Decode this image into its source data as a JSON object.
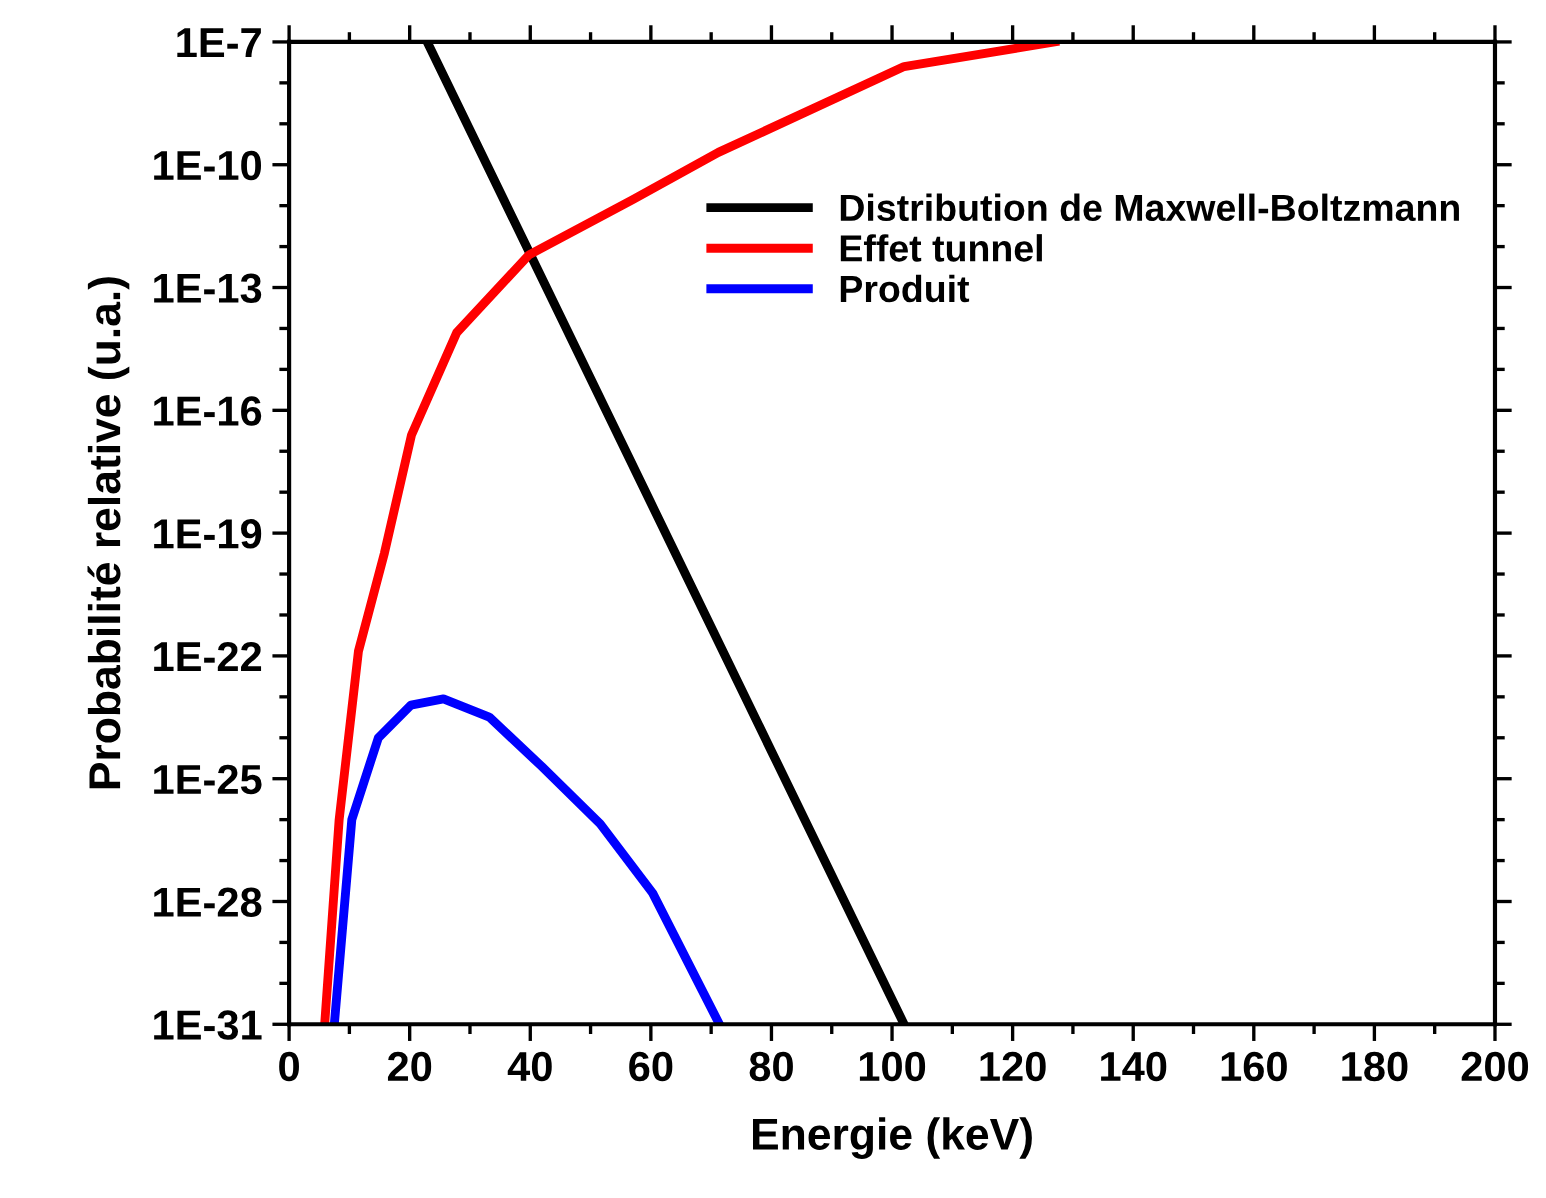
{
  "chart_data": {
    "type": "line",
    "xlabel": "Energie (keV)",
    "ylabel": "Probabilité relative (u.a.)",
    "log": "y",
    "xlim": [
      0,
      200
    ],
    "xticks": [
      0,
      20,
      40,
      60,
      80,
      100,
      120,
      140,
      160,
      180,
      200
    ],
    "ylim": [
      1e-31,
      1e-07
    ],
    "yticks": [
      {
        "value": 1e-31,
        "label": "1E-31"
      },
      {
        "value": 1e-28,
        "label": "1E-28"
      },
      {
        "value": 1e-25,
        "label": "1E-25"
      },
      {
        "value": 1e-22,
        "label": "1E-22"
      },
      {
        "value": 1e-19,
        "label": "1E-19"
      },
      {
        "value": 1e-16,
        "label": "1E-16"
      },
      {
        "value": 1e-13,
        "label": "1E-13"
      },
      {
        "value": 1e-10,
        "label": "1E-10"
      },
      {
        "value": 1e-07,
        "label": "1E-7"
      }
    ],
    "grid": false,
    "legend": "top right",
    "marker": "none",
    "line_style": "solid",
    "series": [
      {
        "name": "Distribution de Maxwell-Boltzmann",
        "color": "#000000",
        "x": [
          22.9,
          40,
          60,
          80,
          102
        ],
        "values": [
          1e-07,
          6.5e-13,
          5.5e-19,
          4.7e-25,
          1e-31
        ]
      },
      {
        "name": "Effet tunnel",
        "color": "#ff0000",
        "x": [
          5.9,
          8.3,
          11.5,
          15.8,
          20.3,
          27.8,
          39.8,
          57,
          71.2,
          102,
          127
        ],
        "values": [
          1e-31,
          1e-26,
          1.3e-22,
          3.2e-20,
          2.5e-17,
          7.9e-15,
          6.3e-13,
          1.4e-11,
          2e-10,
          2.5e-08,
          1e-07
        ]
      },
      {
        "name": "Produit",
        "color": "#0000ff",
        "x": [
          7.5,
          10.4,
          14.8,
          20.2,
          25.6,
          33.2,
          41.9,
          51.6,
          60.3,
          71.1
        ],
        "values": [
          1e-31,
          1e-26,
          1e-24,
          6.3e-24,
          8.9e-24,
          3.2e-24,
          2e-25,
          7.9e-27,
          1.6e-28,
          1.2e-31
        ]
      }
    ]
  }
}
